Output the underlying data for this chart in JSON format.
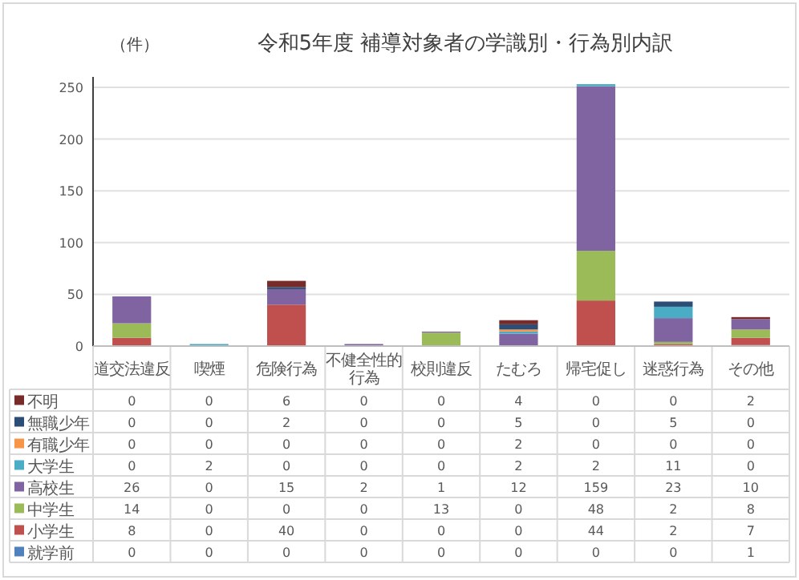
{
  "chart_data": {
    "type": "bar",
    "stacked": true,
    "title": "令和5年度 補導対象者の学識別・行為別内訳",
    "ylabel": "（件）",
    "categories": [
      "道交法違反",
      "喫煙",
      "危険行為",
      "不健全性的行為",
      "校則違反",
      "たむろ",
      "帰宅促し",
      "迷惑行為",
      "その他"
    ],
    "series": [
      {
        "name": "就学前",
        "color": "#4f81bd",
        "values": [
          0,
          0,
          0,
          0,
          0,
          0,
          0,
          0,
          1
        ]
      },
      {
        "name": "小学生",
        "color": "#c0504d",
        "values": [
          8,
          0,
          40,
          0,
          0,
          0,
          44,
          2,
          7
        ]
      },
      {
        "name": "中学生",
        "color": "#9bbb59",
        "values": [
          14,
          0,
          0,
          0,
          13,
          0,
          48,
          2,
          8
        ]
      },
      {
        "name": "高校生",
        "color": "#8064a2",
        "values": [
          26,
          0,
          15,
          2,
          1,
          12,
          159,
          23,
          10
        ]
      },
      {
        "name": "大学生",
        "color": "#4bacc6",
        "values": [
          0,
          2,
          0,
          0,
          0,
          2,
          2,
          11,
          0
        ]
      },
      {
        "name": "有職少年",
        "color": "#f79646",
        "values": [
          0,
          0,
          0,
          0,
          0,
          2,
          0,
          0,
          0
        ]
      },
      {
        "name": "無職少年",
        "color": "#2c4d75",
        "values": [
          0,
          0,
          2,
          0,
          0,
          5,
          0,
          5,
          0
        ]
      },
      {
        "name": "不明",
        "color": "#772c2a",
        "values": [
          0,
          0,
          6,
          0,
          0,
          4,
          0,
          0,
          2
        ]
      }
    ],
    "ylim": [
      0,
      260
    ],
    "yticks": [
      0,
      50,
      100,
      150,
      200,
      250
    ],
    "grid": "y",
    "data_labels": true,
    "legend": "bottom"
  }
}
